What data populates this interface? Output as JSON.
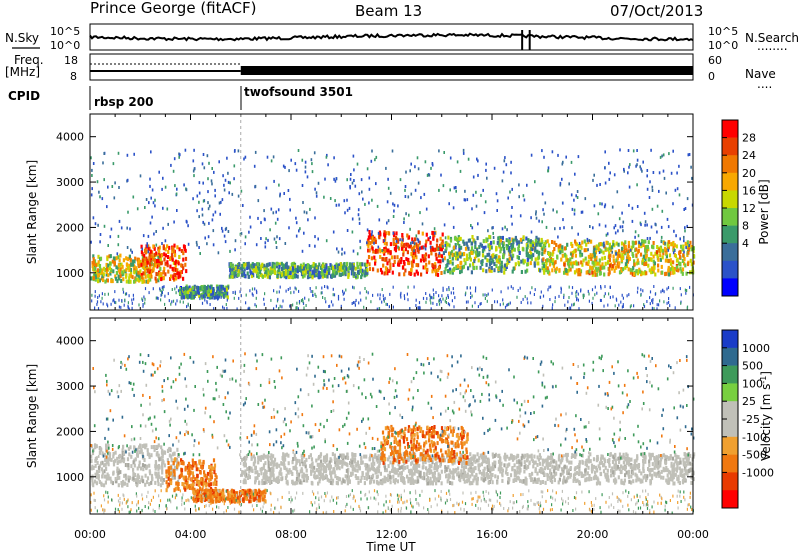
{
  "header": {
    "site": "Prince George (fitACF)",
    "beam": "Beam 13",
    "date": "07/Oct/2013"
  },
  "left_labels": {
    "nsky": "N.Sky",
    "freq": "Freq.",
    "freq_unit": "[MHz]",
    "cpid": "CPID"
  },
  "right_labels": {
    "nsearch": "N.Search",
    "nsearch_dots": "........",
    "nave": "Nave",
    "nave_dots": "...."
  },
  "noise_panel": {
    "left_ticks": [
      "10^5",
      "10^0"
    ],
    "right_ticks": [
      "10^5",
      "10^0"
    ]
  },
  "freq_panel": {
    "left_ticks": [
      "18",
      "8"
    ],
    "right_ticks": [
      "60",
      "0"
    ]
  },
  "cpid_panel": {
    "programs": [
      {
        "name": "rbsp 200",
        "start_hour": 0
      },
      {
        "name": "twofsound 3501",
        "start_hour": 6.0
      }
    ]
  },
  "chart_data": [
    {
      "type": "heatmap",
      "quantity": "power",
      "ylabel": "Slant Range [km]",
      "ylim": [
        180,
        4500
      ],
      "yticks": [
        1000,
        2000,
        3000,
        4000
      ],
      "xlim": [
        0,
        24
      ],
      "colorbar": {
        "label": "Power [dB]",
        "ticks": [
          "28",
          "24",
          "20",
          "16",
          "12",
          "8",
          "4"
        ],
        "colors": [
          "#ff0000",
          "#e84000",
          "#f07800",
          "#f8a800",
          "#c8d800",
          "#70c840",
          "#3a9a6a",
          "#3a6e9a",
          "#2b52c8",
          "#0000ff"
        ]
      },
      "regions": [
        {
          "t0": 0.0,
          "t1": 2.8,
          "r0": 800,
          "r1": 1400,
          "level": 0.55
        },
        {
          "t0": 2.0,
          "t1": 3.8,
          "r0": 850,
          "r1": 1600,
          "level": 0.85
        },
        {
          "t0": 3.5,
          "t1": 5.5,
          "r0": 450,
          "r1": 700,
          "level": 0.3
        },
        {
          "t0": 5.5,
          "t1": 11.0,
          "r0": 900,
          "r1": 1200,
          "level": 0.35
        },
        {
          "t0": 11.0,
          "t1": 14.0,
          "r0": 950,
          "r1": 1900,
          "level": 0.9
        },
        {
          "t0": 14.0,
          "t1": 18.0,
          "r0": 1000,
          "r1": 1800,
          "level": 0.4
        },
        {
          "t0": 18.0,
          "t1": 24.0,
          "r0": 950,
          "r1": 1700,
          "level": 0.6
        }
      ]
    },
    {
      "type": "heatmap",
      "quantity": "velocity",
      "ylabel": "Slant Range [km]",
      "ylim": [
        180,
        4500
      ],
      "yticks": [
        1000,
        2000,
        3000,
        4000
      ],
      "xlim": [
        0,
        24
      ],
      "colorbar": {
        "label": "Velocity [m s",
        "label_sup": "-1",
        "label_end": "]",
        "ticks": [
          "1000",
          "500",
          "100",
          "25",
          "-25",
          "-100",
          "-500",
          "-1000"
        ],
        "colors": [
          "#1a3cc8",
          "#2f6a8f",
          "#3e9a5a",
          "#78d040",
          "#c0c0b8",
          "#c0c0b8",
          "#f0a030",
          "#f07810",
          "#e83a00",
          "#ff0000"
        ]
      },
      "regions": [
        {
          "t0": 0.0,
          "t1": 3.5,
          "r0": 800,
          "r1": 1700,
          "kind": "ground"
        },
        {
          "t0": 3.0,
          "t1": 5.0,
          "r0": 700,
          "r1": 1400,
          "kind": "neg"
        },
        {
          "t0": 4.0,
          "t1": 7.0,
          "r0": 450,
          "r1": 700,
          "kind": "neg"
        },
        {
          "t0": 6.0,
          "t1": 24.0,
          "r0": 850,
          "r1": 1500,
          "kind": "ground"
        },
        {
          "t0": 11.5,
          "t1": 15.0,
          "r0": 1300,
          "r1": 2100,
          "kind": "neg"
        }
      ]
    }
  ],
  "time_axis": {
    "xlabel": "Time UT",
    "ticks": [
      "00:00",
      "04:00",
      "08:00",
      "12:00",
      "16:00",
      "20:00",
      "00:00"
    ]
  }
}
